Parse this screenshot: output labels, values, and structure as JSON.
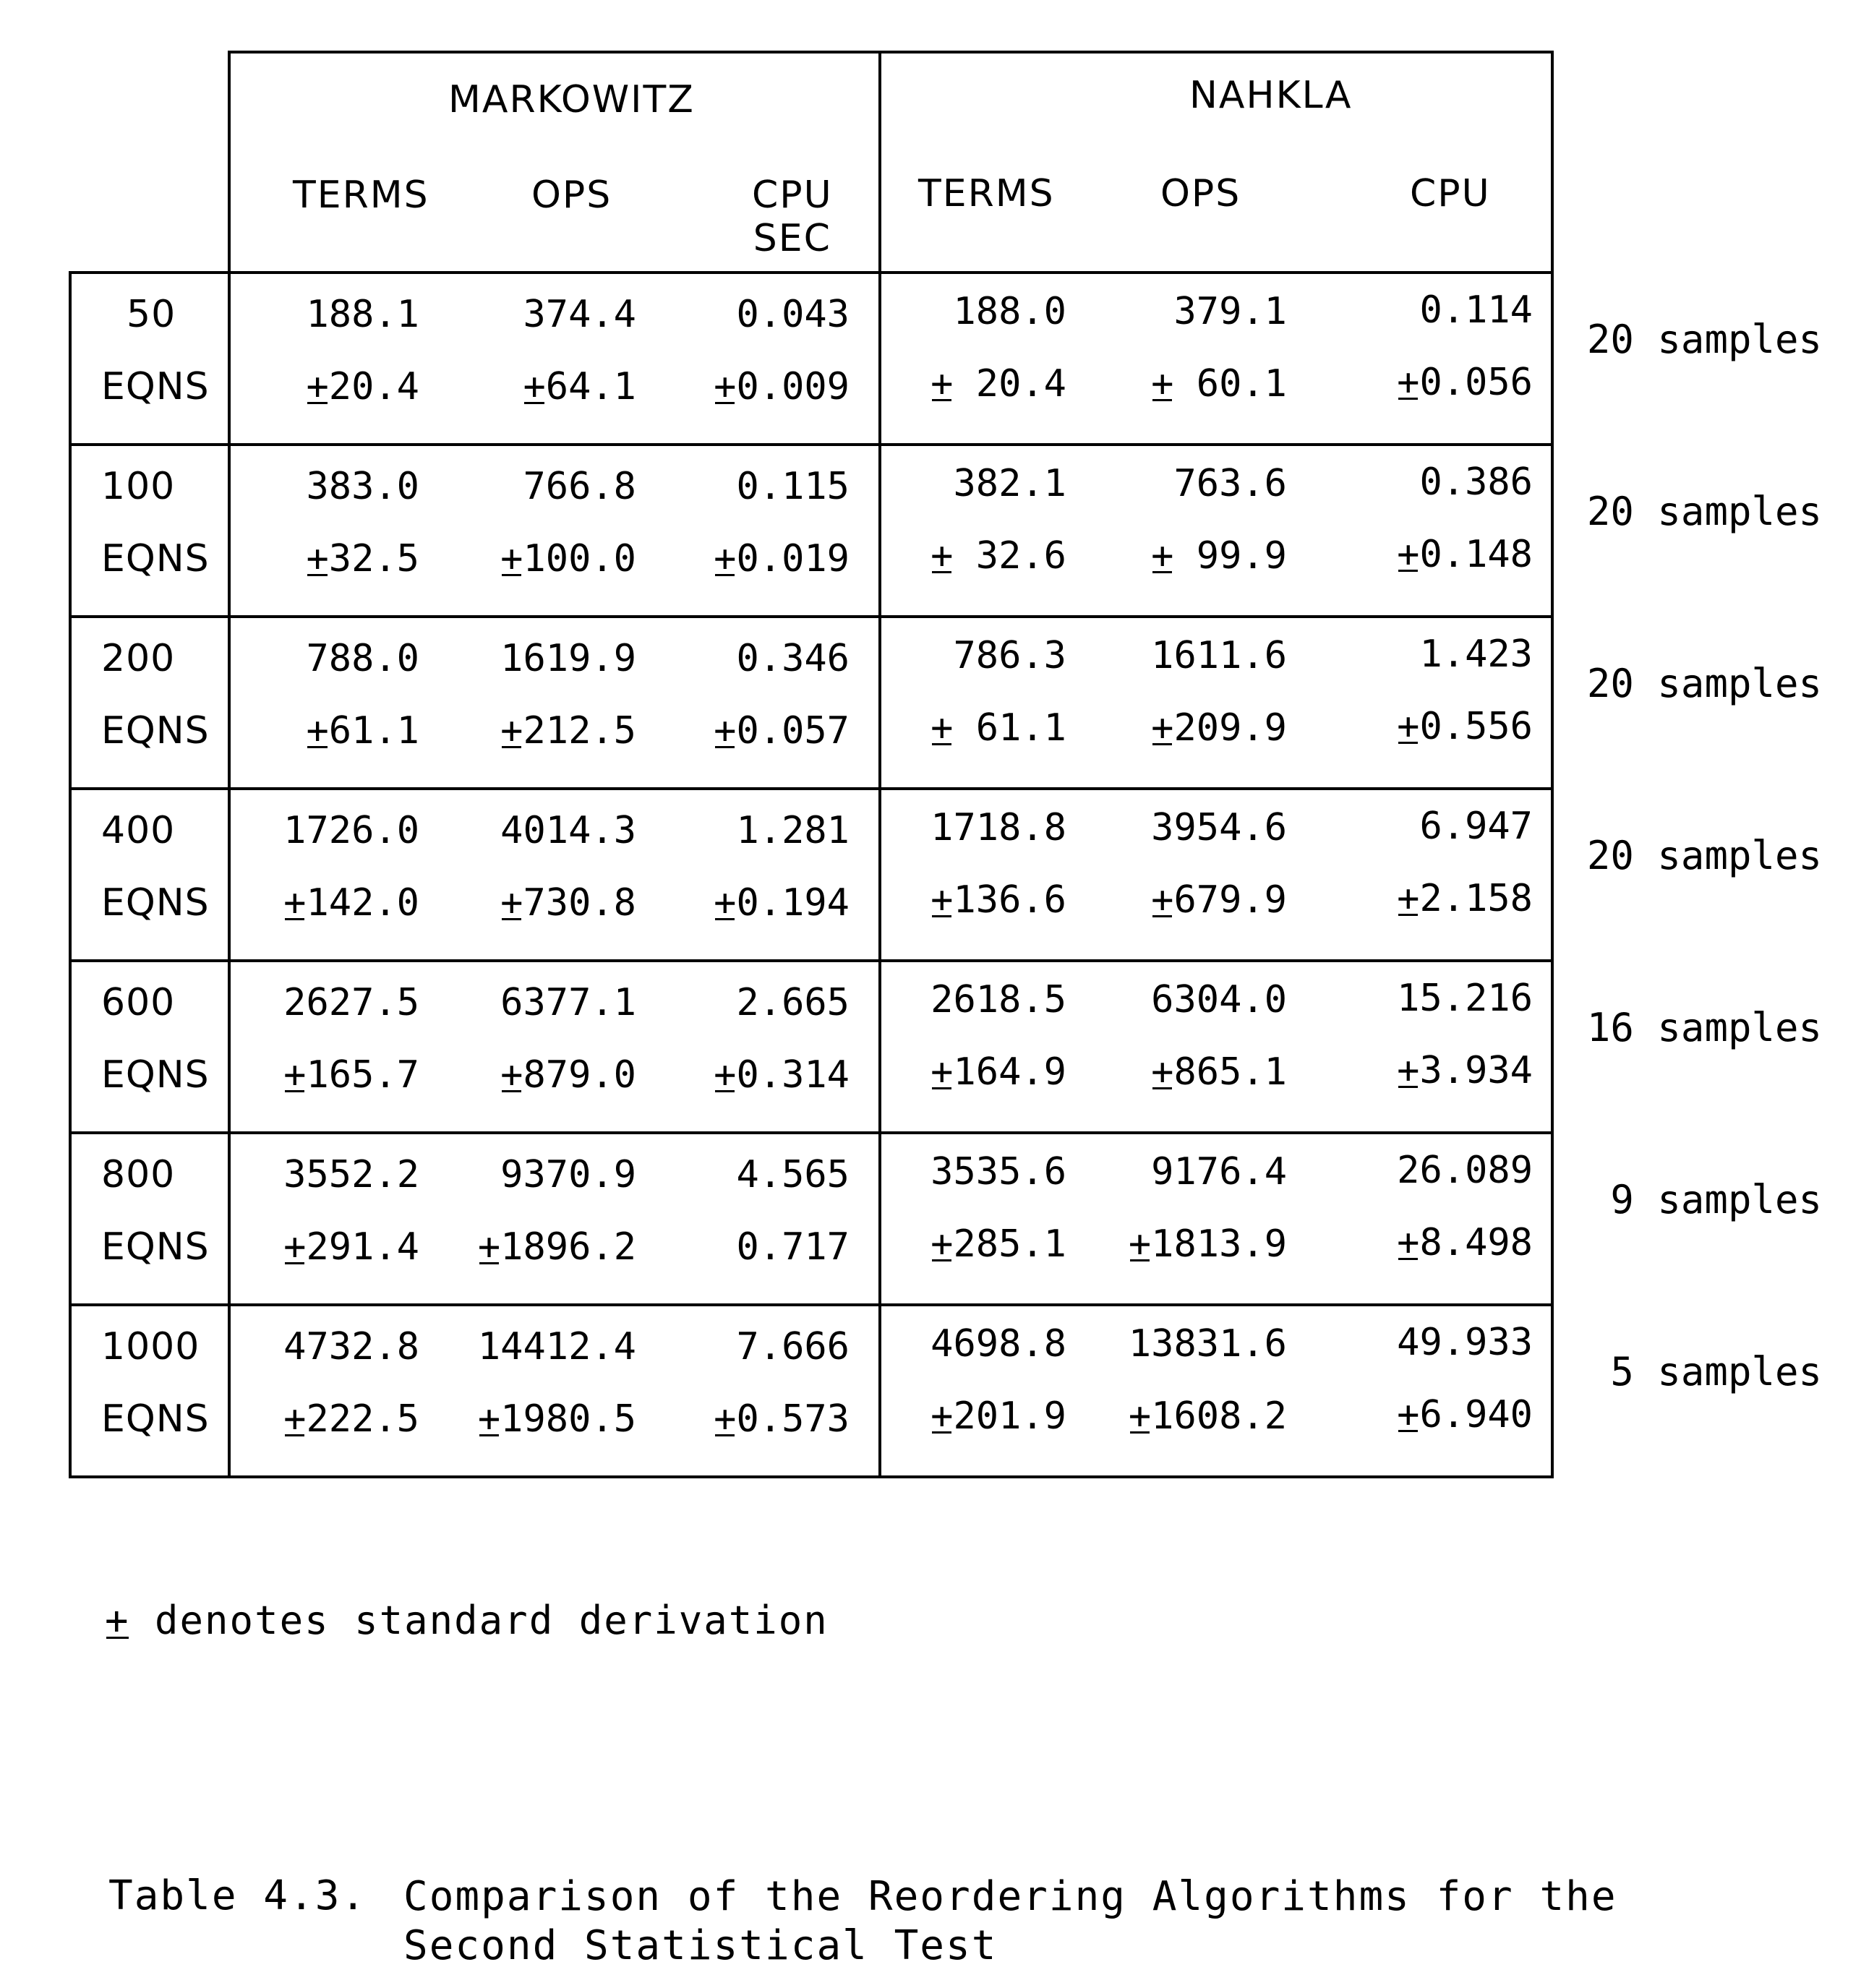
{
  "table": {
    "groups": [
      "MARKOWITZ",
      "NAHKLA"
    ],
    "columns": {
      "markowitz": [
        "TERMS",
        "OPS",
        "CPU\nSEC"
      ],
      "nahkla": [
        "TERMS",
        "OPS",
        "CPU"
      ]
    },
    "rows": [
      {
        "size": "50",
        "unit": "EQNS",
        "markowitz": {
          "terms": "188.1",
          "terms_sd": "20.4",
          "ops": "374.4",
          "ops_sd": "64.1",
          "cpu": "0.043",
          "cpu_sd": "0.009"
        },
        "nahkla": {
          "terms": "188.0",
          "terms_sd": " 20.4",
          "ops": "379.1",
          "ops_sd": " 60.1",
          "cpu": "0.114",
          "cpu_sd": "0.056"
        },
        "samples": "20 samples"
      },
      {
        "size": "100",
        "unit": "EQNS",
        "markowitz": {
          "terms": "383.0",
          "terms_sd": "32.5",
          "ops": "766.8",
          "ops_sd": "100.0",
          "cpu": "0.115",
          "cpu_sd": "0.019"
        },
        "nahkla": {
          "terms": "382.1",
          "terms_sd": " 32.6",
          "ops": "763.6",
          "ops_sd": " 99.9",
          "cpu": "0.386",
          "cpu_sd": "0.148"
        },
        "samples": "20 samples"
      },
      {
        "size": "200",
        "unit": "EQNS",
        "markowitz": {
          "terms": "788.0",
          "terms_sd": "61.1",
          "ops": "1619.9",
          "ops_sd": "212.5",
          "cpu": "0.346",
          "cpu_sd": "0.057"
        },
        "nahkla": {
          "terms": "786.3",
          "terms_sd": " 61.1",
          "ops": "1611.6",
          "ops_sd": "209.9",
          "cpu": "1.423",
          "cpu_sd": "0.556"
        },
        "samples": "20 samples"
      },
      {
        "size": "400",
        "unit": "EQNS",
        "markowitz": {
          "terms": "1726.0",
          "terms_sd": "142.0",
          "ops": "4014.3",
          "ops_sd": "730.8",
          "cpu": "1.281",
          "cpu_sd": "0.194"
        },
        "nahkla": {
          "terms": "1718.8",
          "terms_sd": "136.6",
          "ops": "3954.6",
          "ops_sd": "679.9",
          "cpu": "6.947",
          "cpu_sd": "2.158"
        },
        "samples": "20 samples"
      },
      {
        "size": "600",
        "unit": "EQNS",
        "markowitz": {
          "terms": "2627.5",
          "terms_sd": "165.7",
          "ops": "6377.1",
          "ops_sd": "879.0",
          "cpu": "2.665",
          "cpu_sd": "0.314"
        },
        "nahkla": {
          "terms": "2618.5",
          "terms_sd": "164.9",
          "ops": "6304.0",
          "ops_sd": "865.1",
          "cpu": "15.216",
          "cpu_sd": "3.934"
        },
        "samples": "16 samples"
      },
      {
        "size": "800",
        "unit": "EQNS",
        "markowitz": {
          "terms": "3552.2",
          "terms_sd": "291.4",
          "ops": "9370.9",
          "ops_sd": "1896.2",
          "cpu": "4.565",
          "cpu_sd": "0.717"
        },
        "nahkla": {
          "terms": "3535.6",
          "terms_sd": "285.1",
          "ops": "9176.4",
          "ops_sd": "1813.9",
          "cpu": "26.089",
          "cpu_sd": "8.498"
        },
        "samples": "9 samples"
      },
      {
        "size": "1000",
        "unit": "EQNS",
        "markowitz": {
          "terms": "4732.8",
          "terms_sd": "222.5",
          "ops": "14412.4",
          "ops_sd": "1980.5",
          "cpu": "7.666",
          "cpu_sd": "0.573"
        },
        "nahkla": {
          "terms": "4698.8",
          "terms_sd": "201.9",
          "ops": "13831.6",
          "ops_sd": "1608.2",
          "cpu": "49.933",
          "cpu_sd": "6.940"
        },
        "samples": "5 samples"
      }
    ]
  },
  "plus_minus_symbol": "+",
  "footnote": "+ denotes standard derivation",
  "caption": {
    "number": "Table 4.3.",
    "text": "Comparison of the Reordering Algorithms for the\nSecond Statistical Test"
  }
}
